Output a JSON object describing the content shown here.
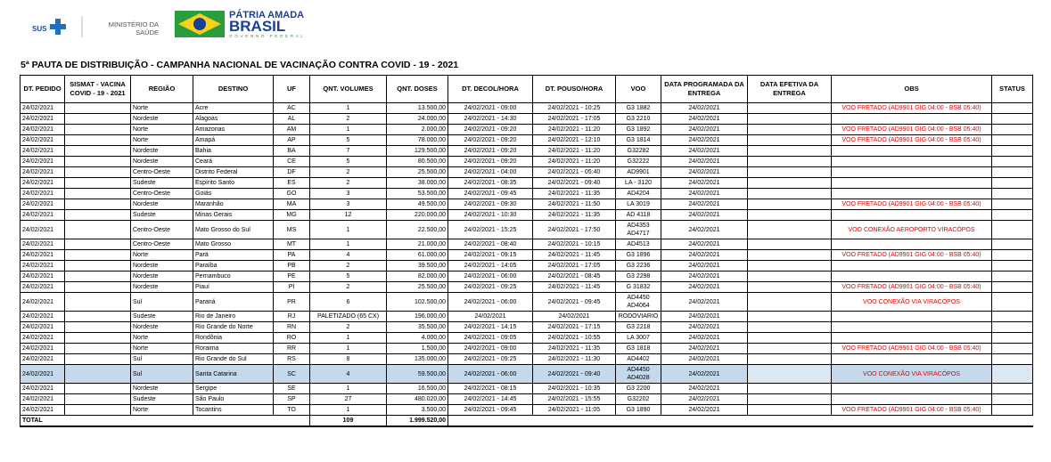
{
  "header": {
    "sus": "SUS",
    "ministry_line1": "MINISTÉRIO DA",
    "ministry_line2": "SAÚDE",
    "gov_line1": "PÁTRIA AMADA",
    "gov_line2": "BRASIL",
    "gov_line3": "GOVERNO FEDERAL"
  },
  "title": "5ª PAUTA DE DISTRIBUIÇÃO - CAMPANHA NACIONAL DE VACINAÇÃO CONTRA COVID - 19 - 2021",
  "table": {
    "columns": [
      "DT. PEDIDO",
      "SISMAT - VACINA COVID - 19 - 2021",
      "REGIÃO",
      "DESTINO",
      "UF",
      "QNT. VOLUMES",
      "QNT. DOSES",
      "DT. DECOL/HORA",
      "DT. POUSO/HORA",
      "VOO",
      "DATA PROGRAMADA DA ENTREGA",
      "DATA EFETIVA DA ENTREGA",
      "OBS",
      "STATUS"
    ],
    "rows": [
      [
        "24/02/2021",
        null,
        "Norte",
        "Acre",
        "AC",
        "1",
        "13.500,00",
        "24/02/2021 - 09:00",
        "24/02/2021 - 10:25",
        "G3 1882",
        "24/02/2021",
        null,
        "VOO FRETADO (AD9901 GIG 04:00 - BSB 05:40)",
        null
      ],
      [
        "24/02/2021",
        null,
        "Nordeste",
        "Alagoas",
        "AL",
        "2",
        "24.000,00",
        "24/02/2021 - 14:30",
        "24/02/2021 - 17:05",
        "G3 2210",
        "24/02/2021",
        null,
        null,
        null
      ],
      [
        "24/02/2021",
        null,
        "Norte",
        "Amazonas",
        "AM",
        "1",
        "2.000,00",
        "24/02/2021 - 09:20",
        "24/02/2021 - 11:20",
        "G3 1892",
        "24/02/2021",
        null,
        "VOO FRETADO (AD9901 GIG 04:00 - BSB 05:40)",
        null
      ],
      [
        "24/02/2021",
        null,
        "Norte",
        "Amapá",
        "AP",
        "5",
        "78.000,00",
        "24/02/2021 - 09:20",
        "24/02/2021 - 12:10",
        "G3 1814",
        "24/02/2021",
        null,
        "VOO FRETADO (AD9901 GIG 04:00 - BSB 05:40)",
        null
      ],
      [
        "24/02/2021",
        null,
        "Nordeste",
        "Bahia",
        "BA",
        "7",
        "129.500,00",
        "24/02/2021 - 09:20",
        "24/02/2021 - 11:20",
        "G32282",
        "24/02/2021",
        null,
        null,
        null
      ],
      [
        "24/02/2021",
        null,
        "Nordeste",
        "Ceará",
        "CE",
        "5",
        "80.500,00",
        "24/02/2021 - 09:20",
        "24/02/2021 - 11:20",
        "G32222",
        "24/02/2021",
        null,
        null,
        null
      ],
      [
        "24/02/2021",
        null,
        "Centro-Oeste",
        "Distrito Federal",
        "DF",
        "2",
        "25.500,00",
        "24/02/2021 - 04:00",
        "24/02/2021 - 05:40",
        "AD9901",
        "24/02/2021",
        null,
        null,
        null
      ],
      [
        "24/02/2021",
        null,
        "Sudeste",
        "Espírito Santo",
        "ES",
        "2",
        "38.000,00",
        "24/02/2021 - 08:35",
        "24/02/2021 - 09:40",
        "LA - 3120",
        "24/02/2021",
        null,
        null,
        null
      ],
      [
        "24/02/2021",
        null,
        "Centro-Oeste",
        "Goiás",
        "GO",
        "3",
        "53.500,00",
        "24/02/2021 - 09:45",
        "24/02/2021 - 11:35",
        "AD4204",
        "24/02/2021",
        null,
        null,
        null
      ],
      [
        "24/02/2021",
        null,
        "Nordeste",
        "Maranhão",
        "MA",
        "3",
        "49.500,00",
        "24/02/2021 - 09:30",
        "24/02/2021 - 11:50",
        "LA 3019",
        "24/02/2021",
        null,
        "VOO FRETADO (AD9901 GIG 04:00 - BSB 05:40)",
        null
      ],
      [
        "24/02/2021",
        null,
        "Sudeste",
        "Minas Gerais",
        "MG",
        "12",
        "220.000,00",
        "24/02/2021 - 10:30",
        "24/02/2021 - 11:35",
        "AD 4118",
        "24/02/2021",
        null,
        null,
        null
      ],
      [
        "24/02/2021",
        null,
        "Centro-Oeste",
        "Mato Grosso do Sul",
        "MS",
        "1",
        "22.500,00",
        "24/02/2021 - 15:25",
        "24/02/2021 - 17:50",
        "AD4353 AD4717",
        "24/02/2021",
        null,
        "VOO CONEXÃO AEROPORTO VIRACÓPOS",
        null
      ],
      [
        "24/02/2021",
        null,
        "Centro-Oeste",
        "Mato Grosso",
        "MT",
        "1",
        "21.000,00",
        "24/02/2021 - 08:40",
        "24/02/2021 - 10:15",
        "AD4513",
        "24/02/2021",
        null,
        null,
        null
      ],
      [
        "24/02/2021",
        null,
        "Norte",
        "Pará",
        "PA",
        "4",
        "61.000,00",
        "24/02/2021 - 09:15",
        "24/02/2021 - 11:45",
        "G3 1896",
        "24/02/2021",
        null,
        "VOO FRETADO (AD9901 GIG 04:00 - BSB 05:40)",
        null
      ],
      [
        "24/02/2021",
        null,
        "Nordeste",
        "Paraíba",
        "PB",
        "2",
        "39.500,00",
        "24/02/2021 - 14:05",
        "24/02/2021 - 17:05",
        "G3 2236",
        "24/02/2021",
        null,
        null,
        null
      ],
      [
        "24/02/2021",
        null,
        "Nordeste",
        "Pernambuco",
        "PE",
        "5",
        "82.000,00",
        "24/02/2021 - 06:00",
        "24/02/2021 - 08:45",
        "G3 2298",
        "24/02/2021",
        null,
        null,
        null
      ],
      [
        "24/02/2021",
        null,
        "Nordeste",
        "Piauí",
        "PI",
        "2",
        "25.500,00",
        "24/02/2021 - 09:25",
        "24/02/2021 - 11:45",
        "G 31832",
        "24/02/2021",
        null,
        "VOO FRETADO (AD9901 GIG 04:00 - BSB 05:40)",
        null
      ],
      [
        "24/02/2021",
        null,
        "Sul",
        "Paraná",
        "PR",
        "6",
        "102.500,00",
        "24/02/2021 - 06:00",
        "24/02/2021 - 09:45",
        "AD4450 AD4064",
        "24/02/2021",
        null,
        "VOO CONEXÃO VIA VIRACÓPOS",
        null
      ],
      [
        "24/02/2021",
        null,
        "Sudeste",
        "Rio de Janeiro",
        "RJ",
        "PALETIZADO (65 CX)",
        "196.000,00",
        "24/02/2021",
        "24/02/2021",
        "RODOVIARIO",
        "24/02/2021",
        null,
        null,
        null
      ],
      [
        "24/02/2021",
        null,
        "Nordeste",
        "Rio Grande do Norte",
        "RN",
        "2",
        "35.500,00",
        "24/02/2021 - 14:15",
        "24/02/2021 - 17:15",
        "G3 2218",
        "24/02/2021",
        null,
        null,
        null
      ],
      [
        "24/02/2021",
        null,
        "Norte",
        "Rondônia",
        "RO",
        "1",
        "4.000,00",
        "24/02/2021 - 09:05",
        "24/02/2021 - 10:55",
        "LA 3007",
        "24/02/2021",
        null,
        null,
        null
      ],
      [
        "24/02/2021",
        null,
        "Norte",
        "Roraima",
        "RR",
        "1",
        "1.500,00",
        "24/02/2021 - 09:00",
        "24/02/2021 - 11:35",
        "G3 1818",
        "24/02/2021",
        null,
        "VOO FRETADO (AD9901 GIG 04:00 - BSB 05:40)",
        null
      ],
      [
        "24/02/2021",
        null,
        "Sul",
        "Rio Grande do Sul",
        "RS",
        "8",
        "135.000,00",
        "24/02/2021 - 09:25",
        "24/02/2021 - 11:30",
        "AD4402",
        "24/02/2021",
        null,
        null,
        null
      ],
      [
        "24/02/2021",
        null,
        "Sul",
        "Santa Catarina",
        "SC",
        "4",
        "59.500,00",
        "24/02/2021 - 06:00",
        "24/02/2021 - 09:40",
        "AD4450 AD4028",
        "24/02/2021",
        null,
        "VOO CONEXÃO VIA VIRACÓPOS",
        null
      ],
      [
        "24/02/2021",
        null,
        "Nordeste",
        "Sergipe",
        "SE",
        "1",
        "16.500,00",
        "24/02/2021 - 08:15",
        "24/02/2021 - 10:35",
        "G3 2200",
        "24/02/2021",
        null,
        null,
        null
      ],
      [
        "24/02/2021",
        null,
        "Sudeste",
        "São Paulo",
        "SP",
        "27",
        "480.020,00",
        "24/02/2021 - 14:45",
        "24/02/2021 - 15:55",
        "G32202",
        "24/02/2021",
        null,
        null,
        null
      ],
      [
        "24/02/2021",
        null,
        "Norte",
        "Tocantins",
        "TO",
        "1",
        "3.500,00",
        "24/02/2021 - 09:45",
        "24/02/2021 - 11:05",
        "G3 1890",
        "24/02/2021",
        null,
        "VOO FRETADO (AD9901 GIG 04:00 - BSB 05:40)",
        null
      ]
    ],
    "total": {
      "label": "TOTAL",
      "volumes": "109",
      "doses": "1.999.520,00"
    }
  }
}
